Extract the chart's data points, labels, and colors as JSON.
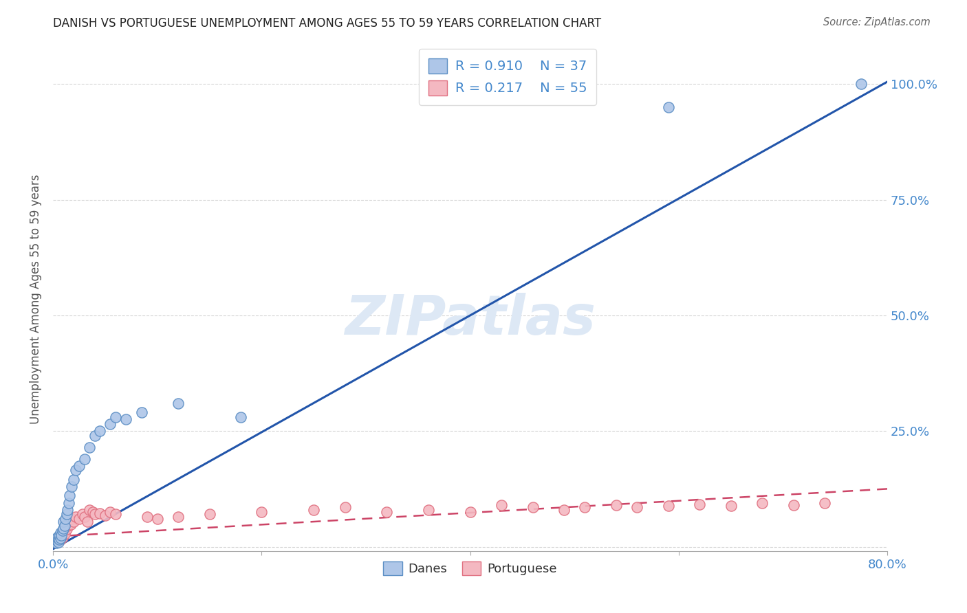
{
  "title": "DANISH VS PORTUGUESE UNEMPLOYMENT AMONG AGES 55 TO 59 YEARS CORRELATION CHART",
  "source_text": "Source: ZipAtlas.com",
  "ylabel": "Unemployment Among Ages 55 to 59 years",
  "xlim": [
    0.0,
    0.8
  ],
  "ylim": [
    -0.01,
    1.08
  ],
  "xticks": [
    0.0,
    0.2,
    0.4,
    0.6,
    0.8
  ],
  "yticks": [
    0.0,
    0.25,
    0.5,
    0.75,
    1.0
  ],
  "yticklabels_right": [
    "",
    "25.0%",
    "50.0%",
    "75.0%",
    "100.0%"
  ],
  "danes_color": "#aec6e8",
  "danes_edge_color": "#5b8ec4",
  "portuguese_color": "#f4b8c1",
  "portuguese_edge_color": "#e07080",
  "danes_line_color": "#2255aa",
  "portuguese_line_color": "#cc4466",
  "danes_R": 0.91,
  "danes_N": 37,
  "portuguese_R": 0.217,
  "portuguese_N": 55,
  "watermark": "ZIPatlas",
  "watermark_color": "#dde8f5",
  "background_color": "#ffffff",
  "grid_color": "#cccccc",
  "title_color": "#222222",
  "blue_tick_color": "#4488cc",
  "danes_x": [
    0.002,
    0.003,
    0.003,
    0.004,
    0.004,
    0.005,
    0.005,
    0.006,
    0.006,
    0.007,
    0.007,
    0.008,
    0.009,
    0.01,
    0.01,
    0.011,
    0.012,
    0.013,
    0.014,
    0.015,
    0.016,
    0.018,
    0.02,
    0.022,
    0.025,
    0.03,
    0.035,
    0.04,
    0.045,
    0.055,
    0.06,
    0.07,
    0.085,
    0.12,
    0.18,
    0.59,
    0.775
  ],
  "danes_y": [
    0.01,
    0.008,
    0.015,
    0.012,
    0.02,
    0.01,
    0.018,
    0.015,
    0.025,
    0.018,
    0.03,
    0.025,
    0.035,
    0.04,
    0.055,
    0.045,
    0.06,
    0.07,
    0.08,
    0.095,
    0.11,
    0.13,
    0.145,
    0.165,
    0.175,
    0.19,
    0.215,
    0.24,
    0.25,
    0.265,
    0.28,
    0.275,
    0.29,
    0.31,
    0.28,
    0.95,
    1.0
  ],
  "portuguese_x": [
    0.002,
    0.003,
    0.003,
    0.004,
    0.005,
    0.006,
    0.006,
    0.007,
    0.008,
    0.009,
    0.01,
    0.01,
    0.011,
    0.012,
    0.013,
    0.014,
    0.015,
    0.016,
    0.017,
    0.018,
    0.02,
    0.022,
    0.025,
    0.028,
    0.03,
    0.033,
    0.035,
    0.038,
    0.04,
    0.045,
    0.05,
    0.055,
    0.06,
    0.09,
    0.1,
    0.12,
    0.15,
    0.2,
    0.25,
    0.28,
    0.32,
    0.36,
    0.4,
    0.43,
    0.46,
    0.49,
    0.51,
    0.54,
    0.56,
    0.59,
    0.62,
    0.65,
    0.68,
    0.71,
    0.74
  ],
  "portuguese_y": [
    0.01,
    0.012,
    0.015,
    0.01,
    0.018,
    0.012,
    0.02,
    0.015,
    0.025,
    0.02,
    0.03,
    0.035,
    0.028,
    0.04,
    0.038,
    0.045,
    0.05,
    0.055,
    0.048,
    0.06,
    0.055,
    0.065,
    0.06,
    0.07,
    0.065,
    0.055,
    0.08,
    0.075,
    0.07,
    0.072,
    0.068,
    0.075,
    0.07,
    0.065,
    0.06,
    0.065,
    0.07,
    0.075,
    0.08,
    0.085,
    0.075,
    0.08,
    0.075,
    0.09,
    0.085,
    0.08,
    0.085,
    0.09,
    0.085,
    0.088,
    0.092,
    0.088,
    0.095,
    0.09,
    0.095
  ],
  "danes_line_x0": 0.0,
  "danes_line_y0": -0.005,
  "danes_line_x1": 0.8,
  "danes_line_y1": 1.005,
  "port_line_x0": 0.0,
  "port_line_y0": 0.022,
  "port_line_x1": 0.8,
  "port_line_y1": 0.125
}
